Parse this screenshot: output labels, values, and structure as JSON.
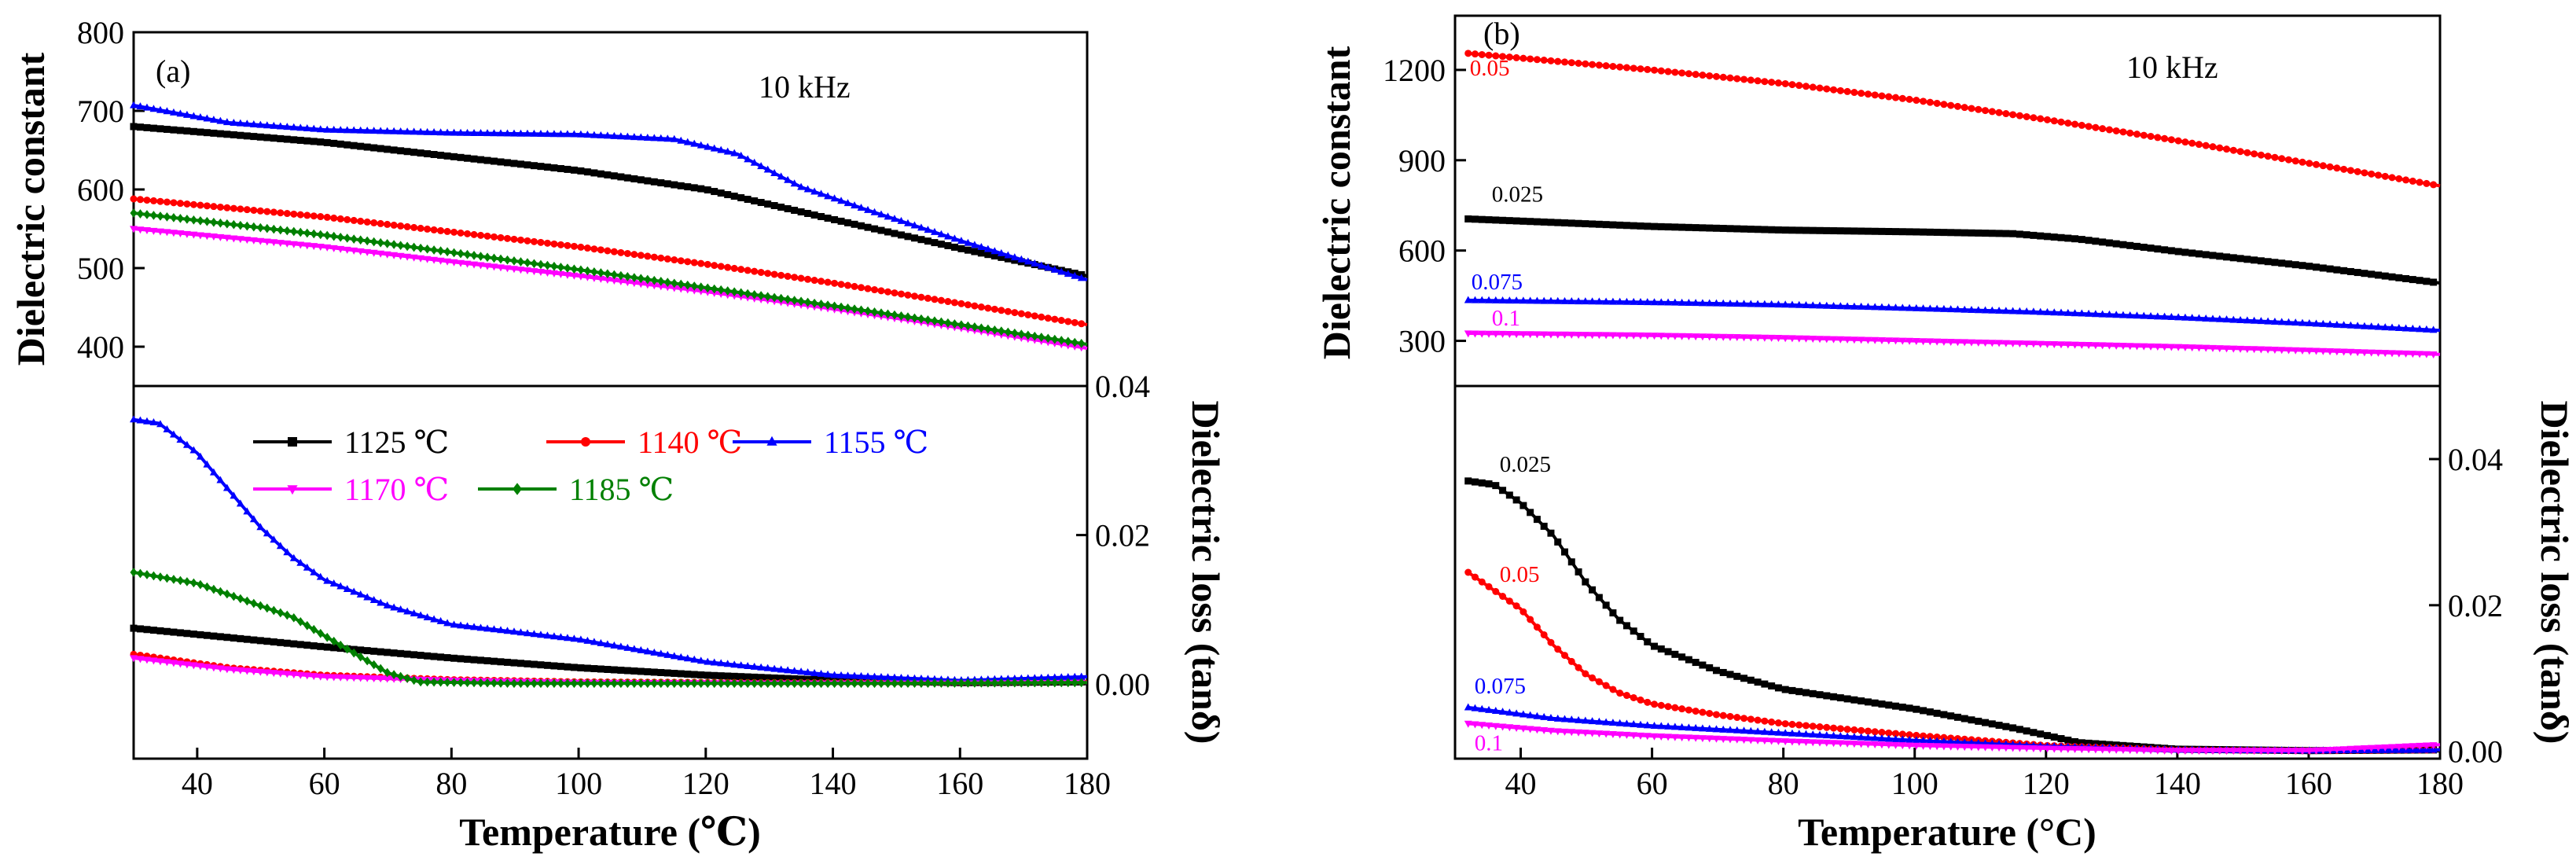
{
  "chart_data": [
    {
      "panel": "(a)",
      "type": "line",
      "annotation": "10 kHz",
      "x_axis": {
        "label": "Temperature (℃)",
        "range": [
          30,
          180
        ],
        "ticks": [
          40,
          60,
          80,
          100,
          120,
          140,
          160,
          180
        ]
      },
      "top": {
        "ylabel": "Dielectric constant",
        "ylim": [
          350,
          800
        ],
        "ticks": [
          400,
          500,
          600,
          700,
          800
        ],
        "series": [
          {
            "name": "1125 ℃",
            "color": "#000000",
            "marker": "square",
            "points": [
              [
                30,
                680
              ],
              [
                60,
                660
              ],
              [
                80,
                642
              ],
              [
                100,
                624
              ],
              [
                120,
                600
              ],
              [
                140,
                562
              ],
              [
                160,
                525
              ],
              [
                180,
                490
              ]
            ]
          },
          {
            "name": "1140 ℃",
            "color": "#ff0000",
            "marker": "circle",
            "points": [
              [
                30,
                588
              ],
              [
                60,
                565
              ],
              [
                80,
                546
              ],
              [
                100,
                527
              ],
              [
                120,
                505
              ],
              [
                140,
                481
              ],
              [
                160,
                455
              ],
              [
                180,
                428
              ]
            ]
          },
          {
            "name": "1155 ℃",
            "color": "#0000ff",
            "marker": "triangle-up",
            "points": [
              [
                30,
                707
              ],
              [
                45,
                685
              ],
              [
                60,
                676
              ],
              [
                80,
                672
              ],
              [
                100,
                670
              ],
              [
                115,
                664
              ],
              [
                125,
                645
              ],
              [
                135,
                603
              ],
              [
                145,
                575
              ],
              [
                160,
                535
              ],
              [
                180,
                485
              ]
            ]
          },
          {
            "name": "1170 ℃",
            "color": "#ff00ff",
            "marker": "triangle-down",
            "points": [
              [
                30,
                550
              ],
              [
                60,
                527
              ],
              [
                80,
                508
              ],
              [
                100,
                490
              ],
              [
                120,
                470
              ],
              [
                140,
                448
              ],
              [
                160,
                424
              ],
              [
                180,
                398
              ]
            ]
          },
          {
            "name": "1185 ℃",
            "color": "#008000",
            "marker": "diamond",
            "points": [
              [
                30,
                570
              ],
              [
                60,
                542
              ],
              [
                80,
                520
              ],
              [
                100,
                498
              ],
              [
                120,
                475
              ],
              [
                140,
                452
              ],
              [
                160,
                428
              ],
              [
                180,
                403
              ]
            ]
          }
        ]
      },
      "bottom": {
        "ylabel": "Dielectric loss (tanδ)",
        "ylim": [
          -0.01,
          0.04
        ],
        "ticks": [
          0.0,
          0.02,
          0.04
        ],
        "tick_labels": [
          "0.00",
          "0.02",
          "0.04"
        ],
        "series": [
          {
            "name": "1125 ℃",
            "color": "#000000",
            "marker": "square",
            "points": [
              [
                30,
                0.0075
              ],
              [
                60,
                0.005
              ],
              [
                80,
                0.0035
              ],
              [
                100,
                0.0022
              ],
              [
                120,
                0.0012
              ],
              [
                140,
                0.0005
              ],
              [
                160,
                0.0002
              ],
              [
                180,
                0.0003
              ]
            ]
          },
          {
            "name": "1140 ℃",
            "color": "#ff0000",
            "marker": "circle",
            "points": [
              [
                30,
                0.004
              ],
              [
                45,
                0.0022
              ],
              [
                60,
                0.0012
              ],
              [
                80,
                0.0006
              ],
              [
                100,
                0.0003
              ],
              [
                130,
                0.0002
              ],
              [
                160,
                0.0002
              ],
              [
                180,
                0.0003
              ]
            ]
          },
          {
            "name": "1155 ℃",
            "color": "#0000ff",
            "marker": "triangle-up",
            "points": [
              [
                30,
                0.0355
              ],
              [
                34,
                0.035
              ],
              [
                40,
                0.031
              ],
              [
                45,
                0.026
              ],
              [
                50,
                0.021
              ],
              [
                55,
                0.017
              ],
              [
                60,
                0.014
              ],
              [
                70,
                0.0105
              ],
              [
                80,
                0.008
              ],
              [
                90,
                0.007
              ],
              [
                100,
                0.006
              ],
              [
                110,
                0.0045
              ],
              [
                120,
                0.003
              ],
              [
                140,
                0.0012
              ],
              [
                160,
                0.0005
              ],
              [
                180,
                0.001
              ]
            ]
          },
          {
            "name": "1170 ℃",
            "color": "#ff00ff",
            "marker": "triangle-down",
            "points": [
              [
                30,
                0.0035
              ],
              [
                45,
                0.002
              ],
              [
                60,
                0.001
              ],
              [
                80,
                0.0005
              ],
              [
                100,
                0.0002
              ],
              [
                130,
                0.0001
              ],
              [
                160,
                0.0001
              ],
              [
                180,
                0.0002
              ]
            ]
          },
          {
            "name": "1185 ℃",
            "color": "#008000",
            "marker": "diamond",
            "points": [
              [
                30,
                0.015
              ],
              [
                40,
                0.0135
              ],
              [
                50,
                0.0105
              ],
              [
                55,
                0.009
              ],
              [
                60,
                0.0065
              ],
              [
                65,
                0.004
              ],
              [
                70,
                0.0015
              ],
              [
                75,
                0.0003
              ],
              [
                90,
                0.0001
              ],
              [
                120,
                0.0001
              ],
              [
                150,
                0.0001
              ],
              [
                180,
                0.0002
              ]
            ]
          }
        ]
      }
    },
    {
      "panel": "(b)",
      "type": "line",
      "annotation": "10 kHz",
      "x_axis": {
        "label": "Temperature (°C)",
        "range": [
          30,
          180
        ],
        "ticks": [
          40,
          60,
          80,
          100,
          120,
          140,
          160,
          180
        ]
      },
      "top": {
        "ylabel": "Dielectric constant",
        "ylim": [
          150,
          1380
        ],
        "ticks": [
          300,
          600,
          900,
          1200
        ],
        "series": [
          {
            "label": "0.05",
            "color": "#ff0000",
            "marker": "circle",
            "points": [
              [
                32,
                1255
              ],
              [
                60,
                1200
              ],
              [
                80,
                1155
              ],
              [
                100,
                1100
              ],
              [
                120,
                1035
              ],
              [
                140,
                965
              ],
              [
                160,
                890
              ],
              [
                180,
                815
              ]
            ]
          },
          {
            "label": "0.025",
            "color": "#000000",
            "marker": "square",
            "points": [
              [
                32,
                705
              ],
              [
                60,
                680
              ],
              [
                80,
                668
              ],
              [
                100,
                662
              ],
              [
                115,
                656
              ],
              [
                125,
                638
              ],
              [
                140,
                597
              ],
              [
                160,
                548
              ],
              [
                180,
                492
              ]
            ]
          },
          {
            "label": "0.075",
            "color": "#0000ff",
            "marker": "triangle-up",
            "points": [
              [
                32,
                435
              ],
              [
                60,
                428
              ],
              [
                80,
                420
              ],
              [
                100,
                408
              ],
              [
                120,
                395
              ],
              [
                140,
                378
              ],
              [
                160,
                358
              ],
              [
                180,
                335
              ]
            ]
          },
          {
            "label": "0.1",
            "color": "#ff00ff",
            "marker": "triangle-down",
            "points": [
              [
                32,
                325
              ],
              [
                60,
                318
              ],
              [
                80,
                310
              ],
              [
                100,
                300
              ],
              [
                120,
                290
              ],
              [
                140,
                280
              ],
              [
                160,
                268
              ],
              [
                180,
                255
              ]
            ]
          }
        ]
      },
      "bottom": {
        "ylabel": "Dielectric loss (tanδ)",
        "ylim": [
          -0.001,
          0.05
        ],
        "ticks": [
          0.0,
          0.02,
          0.04
        ],
        "tick_labels": [
          "0.00",
          "0.02",
          "0.04"
        ],
        "series": [
          {
            "label": "0.025",
            "color": "#000000",
            "marker": "square",
            "points": [
              [
                32,
                0.037
              ],
              [
                36,
                0.0365
              ],
              [
                40,
                0.034
              ],
              [
                45,
                0.0295
              ],
              [
                50,
                0.023
              ],
              [
                55,
                0.018
              ],
              [
                60,
                0.0145
              ],
              [
                70,
                0.011
              ],
              [
                80,
                0.0085
              ],
              [
                100,
                0.0058
              ],
              [
                115,
                0.0032
              ],
              [
                125,
                0.0012
              ],
              [
                140,
                0.0003
              ],
              [
                160,
                0.0001
              ],
              [
                180,
                0.0002
              ]
            ]
          },
          {
            "label": "0.05",
            "color": "#ff0000",
            "marker": "circle",
            "points": [
              [
                32,
                0.0245
              ],
              [
                40,
                0.0195
              ],
              [
                45,
                0.0145
              ],
              [
                50,
                0.0105
              ],
              [
                55,
                0.008
              ],
              [
                60,
                0.0065
              ],
              [
                70,
                0.005
              ],
              [
                80,
                0.0038
              ],
              [
                100,
                0.0022
              ],
              [
                120,
                0.0008
              ],
              [
                140,
                0.0002
              ],
              [
                160,
                0.0001
              ],
              [
                180,
                0.0002
              ]
            ]
          },
          {
            "label": "0.075",
            "color": "#0000ff",
            "marker": "triangle-up",
            "points": [
              [
                32,
                0.006
              ],
              [
                45,
                0.0045
              ],
              [
                60,
                0.0035
              ],
              [
                80,
                0.0025
              ],
              [
                100,
                0.0015
              ],
              [
                120,
                0.0007
              ],
              [
                140,
                0.0002
              ],
              [
                160,
                0.0001
              ],
              [
                180,
                0.0002
              ]
            ]
          },
          {
            "label": "0.1",
            "color": "#ff00ff",
            "marker": "triangle-down",
            "points": [
              [
                32,
                0.0038
              ],
              [
                45,
                0.0028
              ],
              [
                60,
                0.0021
              ],
              [
                80,
                0.0014
              ],
              [
                100,
                0.0008
              ],
              [
                120,
                0.0004
              ],
              [
                140,
                0.0001
              ],
              [
                160,
                0.0001
              ],
              [
                180,
                0.0009
              ]
            ]
          }
        ]
      }
    }
  ]
}
